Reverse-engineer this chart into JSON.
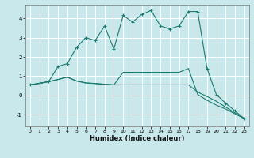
{
  "title": "",
  "xlabel": "Humidex (Indice chaleur)",
  "bg_color": "#c8e8ec",
  "grid_color": "#ffffff",
  "line_color": "#1a7a6e",
  "xlim": [
    -0.5,
    23.5
  ],
  "ylim": [
    -1.6,
    4.7
  ],
  "xticks": [
    0,
    1,
    2,
    3,
    4,
    5,
    6,
    7,
    8,
    9,
    10,
    11,
    12,
    13,
    14,
    15,
    16,
    17,
    18,
    19,
    20,
    21,
    22,
    23
  ],
  "yticks": [
    -1,
    0,
    1,
    2,
    3,
    4
  ],
  "curve1_x": [
    0,
    1,
    2,
    3,
    4,
    5,
    6,
    7,
    8,
    9,
    10,
    11,
    12,
    13,
    14,
    15,
    16,
    17,
    18,
    19,
    20,
    21,
    22,
    23
  ],
  "curve1_y": [
    0.55,
    0.63,
    0.72,
    0.83,
    0.95,
    0.75,
    0.65,
    0.62,
    0.58,
    0.55,
    0.55,
    0.55,
    0.55,
    0.55,
    0.55,
    0.55,
    0.55,
    0.55,
    0.18,
    -0.05,
    -0.3,
    -0.6,
    -0.9,
    -1.2
  ],
  "curve2_x": [
    0,
    1,
    2,
    3,
    4,
    5,
    6,
    7,
    8,
    9,
    10,
    11,
    12,
    13,
    14,
    15,
    16,
    17,
    18,
    19,
    20,
    21,
    22,
    23
  ],
  "curve2_y": [
    0.55,
    0.63,
    0.72,
    0.83,
    0.95,
    0.75,
    0.65,
    0.62,
    0.58,
    0.55,
    1.2,
    1.2,
    1.2,
    1.2,
    1.2,
    1.2,
    1.2,
    1.4,
    0.05,
    -0.25,
    -0.5,
    -0.7,
    -0.95,
    -1.2
  ],
  "curve3_x": [
    0,
    1,
    2,
    3,
    4,
    5,
    6,
    7,
    8,
    9,
    10,
    11,
    12,
    13,
    14,
    15,
    16,
    17,
    18,
    19,
    20,
    21,
    22,
    23
  ],
  "curve3_y": [
    0.55,
    0.63,
    0.72,
    1.5,
    1.65,
    2.5,
    3.0,
    2.85,
    3.6,
    2.4,
    4.15,
    3.8,
    4.2,
    4.4,
    3.6,
    3.45,
    3.6,
    4.35,
    4.35,
    1.4,
    0.05,
    -0.4,
    -0.8,
    -1.2
  ],
  "curve1_markers_x": [
    0,
    1,
    2,
    3,
    4,
    5,
    6,
    7,
    8,
    9,
    10,
    11,
    12,
    13,
    14,
    15,
    16,
    17,
    18,
    19,
    20,
    21,
    22,
    23
  ],
  "curve3_markers_x": [
    0,
    1,
    2,
    3,
    4,
    5,
    6,
    7,
    8,
    9,
    10,
    11,
    12,
    13,
    14,
    15,
    16,
    17,
    18,
    19,
    20,
    21,
    22,
    23
  ],
  "marker_size": 2.2
}
